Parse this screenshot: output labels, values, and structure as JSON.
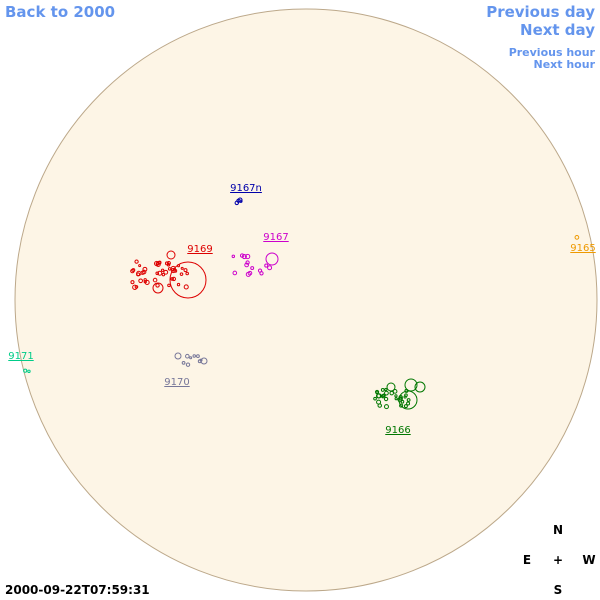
{
  "links": {
    "back": "Back to 2000",
    "previous_day": "Previous day",
    "next_day": "Next day",
    "previous_hour": "Previous hour",
    "next_hour": "Next hour"
  },
  "regions": [
    {
      "label": "9167n",
      "color": "#0000aa"
    },
    {
      "label": "9169",
      "color": "#dd0000"
    },
    {
      "label": "9167",
      "color": "#cc00cc"
    },
    {
      "label": "9165",
      "color": "#ee9900"
    },
    {
      "label": "9171",
      "color": "#00cc88"
    },
    {
      "label": "9170",
      "color": "#777799"
    },
    {
      "label": "9166",
      "color": "#007700"
    }
  ],
  "timestamp": "2000-09-22T07:59:31",
  "compass": {
    "north": "N",
    "east": "E",
    "center": "+",
    "west": "W",
    "south": "S"
  }
}
